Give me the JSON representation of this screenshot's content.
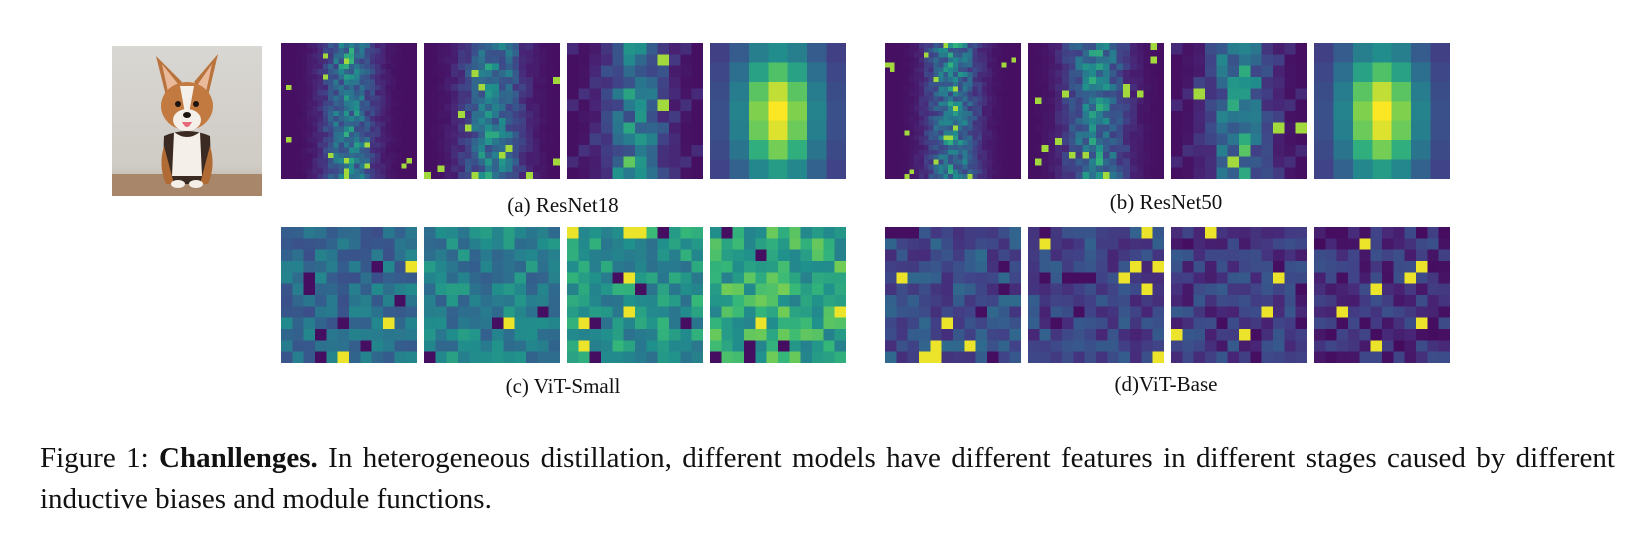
{
  "photo": {
    "alt": "corgi-photo"
  },
  "groups": [
    {
      "id": "a",
      "label": "(a) ResNet18",
      "seeds": [
        11,
        23,
        37,
        51
      ],
      "kind": "cnn",
      "sizes": [
        26,
        20,
        12,
        7
      ]
    },
    {
      "id": "b",
      "label": "(b) ResNet50",
      "seeds": [
        13,
        29,
        43,
        59
      ],
      "kind": "cnn",
      "sizes": [
        28,
        20,
        12,
        7
      ]
    },
    {
      "id": "c",
      "label": "(c) ViT-Small",
      "seeds": [
        17,
        31,
        47,
        61
      ],
      "kind": "vit-small",
      "sizes": [
        12,
        12,
        12,
        12
      ]
    },
    {
      "id": "d",
      "label": "(d)ViT-Base",
      "seeds": [
        19,
        37,
        53,
        67
      ],
      "kind": "vit-base",
      "sizes": [
        12,
        12,
        12,
        12
      ]
    }
  ],
  "caption": {
    "prefix": "Figure 1: ",
    "bold": "Chanllenges.",
    "text": " In heterogeneous distillation, different models have different features in different stages caused by different inductive biases and module functions."
  }
}
